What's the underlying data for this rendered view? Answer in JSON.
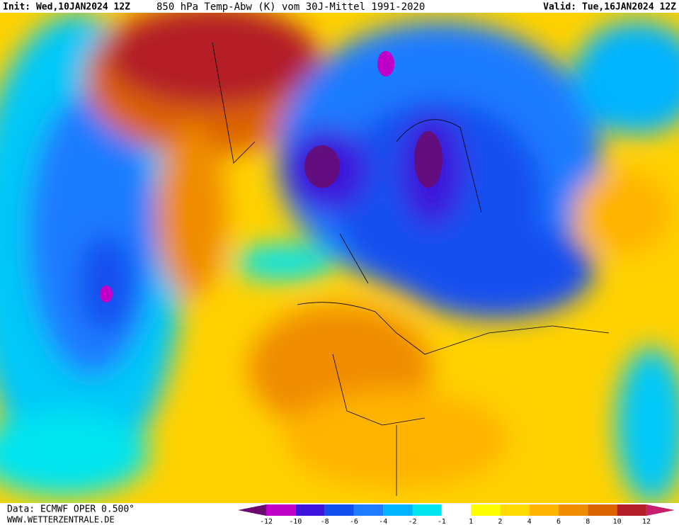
{
  "header": {
    "init": "Init: Wed,10JAN2024 12Z",
    "title": "850 hPa Temp-Abw (K) vom 30J-Mittel 1991-2020",
    "valid": "Valid: Tue,16JAN2024 12Z"
  },
  "footer": {
    "source": "Data: ECMWF OPER 0.500°",
    "site": "WWW.WETTERZENTRALE.DE"
  },
  "colorbar": {
    "ticks": [
      -12,
      -10,
      -8,
      -6,
      -4,
      -2,
      -1,
      1,
      2,
      4,
      6,
      8,
      10,
      12
    ],
    "colors": [
      "#6a0a6e",
      "#c000c8",
      "#3c14dc",
      "#1450f0",
      "#1e7cff",
      "#00b4ff",
      "#00e4f0",
      "#ffffff",
      "#ffff00",
      "#ffdc00",
      "#ffb400",
      "#f08c00",
      "#dc6400",
      "#b41e28",
      "#c81e6e"
    ]
  }
}
